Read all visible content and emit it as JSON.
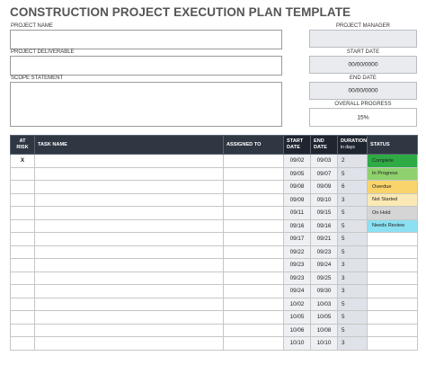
{
  "title": "CONSTRUCTION PROJECT EXECUTION PLAN TEMPLATE",
  "fields": {
    "project_name_label": "PROJECT NAME",
    "project_name_value": "",
    "project_deliverable_label": "PROJECT DELIVERABLE",
    "project_deliverable_value": "",
    "scope_statement_label": "SCOPE STATEMENT",
    "scope_statement_value": "",
    "project_manager_label": "PROJECT MANAGER",
    "project_manager_value": "",
    "start_date_label": "START DATE",
    "start_date_value": "00/00/0000",
    "end_date_label": "END DATE",
    "end_date_value": "00/00/0000",
    "overall_progress_label": "OVERALL PROGRESS",
    "overall_progress_value": "15%"
  },
  "table": {
    "headers": {
      "at_risk": "AT RISK",
      "task_name": "TASK NAME",
      "assigned_to": "ASSIGNED TO",
      "start_date": "START DATE",
      "end_date": "END DATE",
      "duration": "DURATION",
      "duration_sub": "in days",
      "status": "STATUS"
    },
    "rows": [
      {
        "risk": "X",
        "task": "",
        "assigned": "",
        "start": "09/02",
        "end": "09/03",
        "dur": "2",
        "status": "Complete",
        "status_color": "#2eab45"
      },
      {
        "risk": "",
        "task": "",
        "assigned": "",
        "start": "09/05",
        "end": "09/07",
        "dur": "5",
        "status": "In Progress",
        "status_color": "#8fd16c"
      },
      {
        "risk": "",
        "task": "",
        "assigned": "",
        "start": "09/08",
        "end": "09/09",
        "dur": "6",
        "status": "Overdue",
        "status_color": "#f9d36b"
      },
      {
        "risk": "",
        "task": "",
        "assigned": "",
        "start": "09/09",
        "end": "09/10",
        "dur": "3",
        "status": "Not Started",
        "status_color": "#fbe9b5"
      },
      {
        "risk": "",
        "task": "",
        "assigned": "",
        "start": "09/11",
        "end": "09/15",
        "dur": "5",
        "status": "On Hold",
        "status_color": "#d5d5d5"
      },
      {
        "risk": "",
        "task": "",
        "assigned": "",
        "start": "09/16",
        "end": "09/16",
        "dur": "5",
        "status": "Needs Review",
        "status_color": "#8be0f2"
      },
      {
        "risk": "",
        "task": "",
        "assigned": "",
        "start": "09/17",
        "end": "09/21",
        "dur": "5",
        "status": "",
        "status_color": ""
      },
      {
        "risk": "",
        "task": "",
        "assigned": "",
        "start": "09/22",
        "end": "09/23",
        "dur": "5",
        "status": "",
        "status_color": ""
      },
      {
        "risk": "",
        "task": "",
        "assigned": "",
        "start": "09/23",
        "end": "09/24",
        "dur": "3",
        "status": "",
        "status_color": ""
      },
      {
        "risk": "",
        "task": "",
        "assigned": "",
        "start": "09/23",
        "end": "09/25",
        "dur": "3",
        "status": "",
        "status_color": ""
      },
      {
        "risk": "",
        "task": "",
        "assigned": "",
        "start": "09/24",
        "end": "09/30",
        "dur": "3",
        "status": "",
        "status_color": ""
      },
      {
        "risk": "",
        "task": "",
        "assigned": "",
        "start": "10/02",
        "end": "10/03",
        "dur": "5",
        "status": "",
        "status_color": ""
      },
      {
        "risk": "",
        "task": "",
        "assigned": "",
        "start": "10/05",
        "end": "10/05",
        "dur": "5",
        "status": "",
        "status_color": ""
      },
      {
        "risk": "",
        "task": "",
        "assigned": "",
        "start": "10/06",
        "end": "10/08",
        "dur": "5",
        "status": "",
        "status_color": ""
      },
      {
        "risk": "",
        "task": "",
        "assigned": "",
        "start": "10/10",
        "end": "10/10",
        "dur": "3",
        "status": "",
        "status_color": ""
      }
    ]
  }
}
